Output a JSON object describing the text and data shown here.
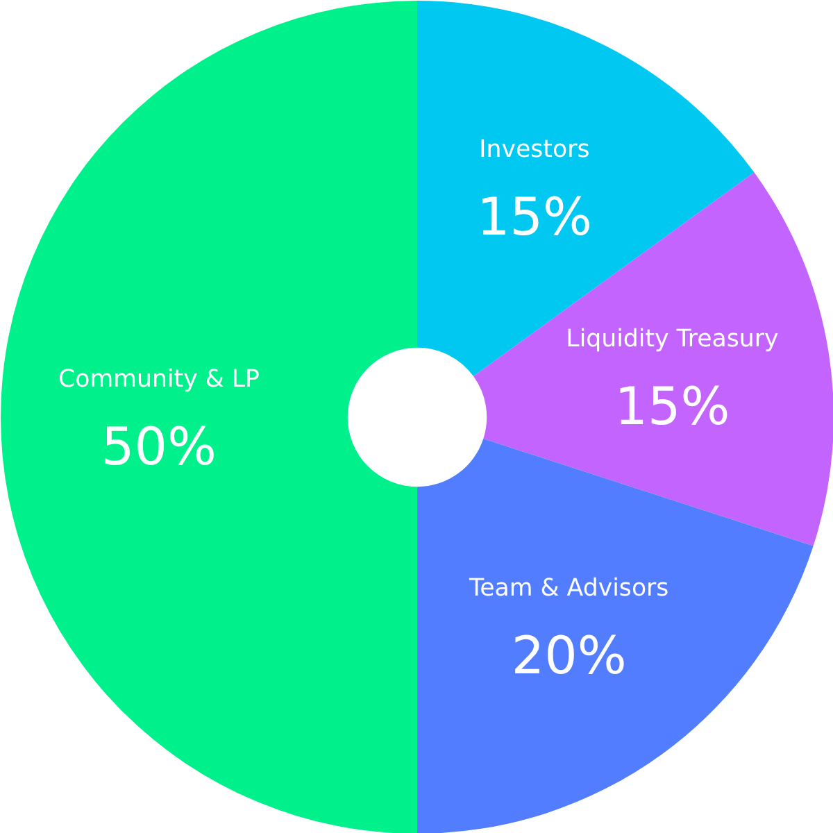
{
  "chart_data": {
    "type": "donut",
    "categories": [
      "Investors",
      "Liquidity Treasury",
      "Team & Advisors",
      "Community & LP"
    ],
    "values": [
      15,
      15,
      20,
      50
    ],
    "colors": [
      "#00c8f0",
      "#c364ff",
      "#527dff",
      "#00f08c"
    ],
    "value_labels": [
      "15%",
      "15%",
      "20%",
      "50%"
    ]
  }
}
